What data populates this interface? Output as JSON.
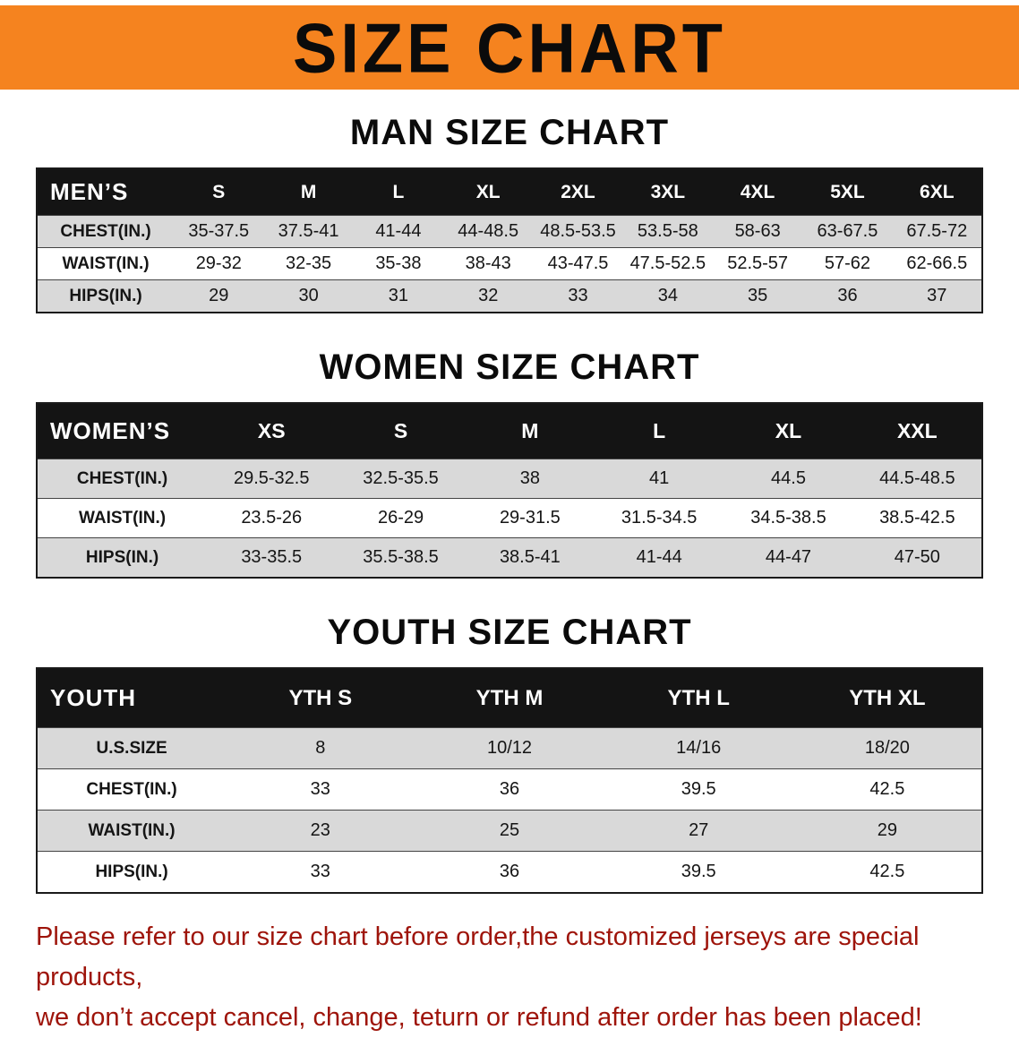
{
  "colors": {
    "banner-bg": "#F5831F",
    "row-shade": "#D9D9D9",
    "header-bg": "#141414",
    "footer-red": "#9E140A"
  },
  "banner": {
    "title": "SIZE CHART"
  },
  "sections": {
    "men": {
      "heading": "MAN SIZE CHART",
      "table": {
        "header": [
          "MEN’S",
          "S",
          "M",
          "L",
          "XL",
          "2XL",
          "3XL",
          "4XL",
          "5XL",
          "6XL"
        ],
        "rows": [
          [
            "CHEST(IN.)",
            "35-37.5",
            "37.5-41",
            "41-44",
            "44-48.5",
            "48.5-53.5",
            "53.5-58",
            "58-63",
            "63-67.5",
            "67.5-72"
          ],
          [
            "WAIST(IN.)",
            "29-32",
            "32-35",
            "35-38",
            "38-43",
            "43-47.5",
            "47.5-52.5",
            "52.5-57",
            "57-62",
            "62-66.5"
          ],
          [
            "HIPS(IN.)",
            "29",
            "30",
            "31",
            "32",
            "33",
            "34",
            "35",
            "36",
            "37"
          ]
        ]
      }
    },
    "women": {
      "heading": "WOMEN SIZE CHART",
      "table": {
        "header": [
          "WOMEN’S",
          "XS",
          "S",
          "M",
          "L",
          "XL",
          "XXL"
        ],
        "rows": [
          [
            "CHEST(IN.)",
            "29.5-32.5",
            "32.5-35.5",
            "38",
            "41",
            "44.5",
            "44.5-48.5"
          ],
          [
            "WAIST(IN.)",
            "23.5-26",
            "26-29",
            "29-31.5",
            "31.5-34.5",
            "34.5-38.5",
            "38.5-42.5"
          ],
          [
            "HIPS(IN.)",
            "33-35.5",
            "35.5-38.5",
            "38.5-41",
            "41-44",
            "44-47",
            "47-50"
          ]
        ]
      }
    },
    "youth": {
      "heading": "YOUTH SIZE CHART",
      "table": {
        "header": [
          "YOUTH",
          "YTH S",
          "YTH M",
          "YTH L",
          "YTH XL"
        ],
        "rows": [
          [
            "U.S.SIZE",
            "8",
            "10/12",
            "14/16",
            "18/20"
          ],
          [
            "CHEST(IN.)",
            "33",
            "36",
            "39.5",
            "42.5"
          ],
          [
            "WAIST(IN.)",
            "23",
            "25",
            "27",
            "29"
          ],
          [
            "HIPS(IN.)",
            "33",
            "36",
            "39.5",
            "42.5"
          ]
        ]
      }
    }
  },
  "footer": {
    "line1": "Please refer to our size chart before order,the customized jerseys are special products,",
    "line2": "we don’t accept cancel, change, teturn or refund after order has been placed!"
  }
}
